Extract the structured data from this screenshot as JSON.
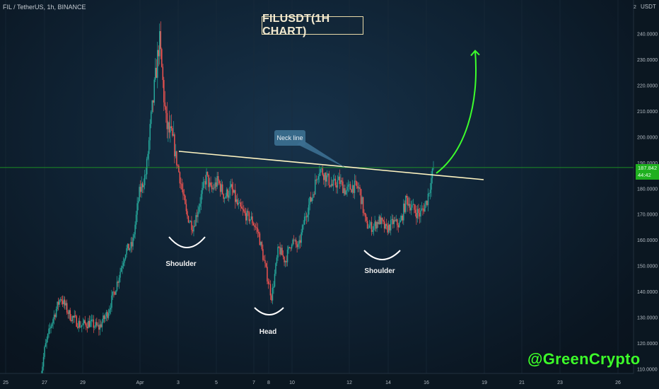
{
  "header": {
    "symbol": "FIL / TetherUS, 1h, BINANCE",
    "unit": "USDT"
  },
  "title": "FILUSDT(1H CHART)",
  "brand": "@GreenCrypto",
  "price_tag": {
    "price": "187.842",
    "countdown": "44:42"
  },
  "annotations": {
    "neck_line": "Neck line",
    "left_shoulder": "Shoulder",
    "head": "Head",
    "right_shoulder": "Shoulder"
  },
  "colors": {
    "up": "#26a69a",
    "down": "#ef5350",
    "neckline": "#fff5c2",
    "arrow": "#3dff2c",
    "price_line": "#1fb01f",
    "callout": "#3c6f90"
  },
  "chart_data": {
    "type": "candlestick",
    "symbol": "FIL / TetherUS",
    "interval": "1h",
    "exchange": "BINANCE",
    "y_unit": "USDT",
    "ylim": [
      106,
      252
    ],
    "y_ticks": [
      110,
      120,
      130,
      140,
      150,
      160,
      170,
      180,
      190,
      200,
      210,
      220,
      230,
      240
    ],
    "y_tick_labels": [
      "110.0000",
      "120.0000",
      "130.0000",
      "140.0000",
      "150.0000",
      "160.0000",
      "170.0000",
      "180.0000",
      "190.0000",
      "200.0000",
      "210.0000",
      "220.0000",
      "230.0000",
      "240.0000"
    ],
    "y_top_label": "2",
    "x_tick_labels": [
      "25",
      "27",
      "29",
      "Apr",
      "3",
      "5",
      "7",
      "8",
      "10",
      "12",
      "14",
      "16",
      "19",
      "21",
      "23",
      "26"
    ],
    "last_price": 187.842,
    "price_path": [
      [
        0,
        106
      ],
      [
        0.02,
        118
      ],
      [
        0.05,
        128
      ],
      [
        0.09,
        138
      ],
      [
        0.13,
        131
      ],
      [
        0.18,
        127
      ],
      [
        0.22,
        128
      ],
      [
        0.26,
        126
      ],
      [
        0.3,
        132
      ],
      [
        0.34,
        143
      ],
      [
        0.38,
        156
      ],
      [
        0.41,
        158
      ],
      [
        0.44,
        178
      ],
      [
        0.47,
        186
      ],
      [
        0.5,
        212
      ],
      [
        0.53,
        238
      ],
      [
        0.56,
        205
      ],
      [
        0.59,
        198
      ],
      [
        0.62,
        185
      ],
      [
        0.65,
        170
      ],
      [
        0.68,
        165
      ],
      [
        0.71,
        175
      ],
      [
        0.74,
        185
      ],
      [
        0.76,
        179
      ],
      [
        0.79,
        183
      ],
      [
        0.82,
        177
      ],
      [
        0.85,
        180
      ],
      [
        0.88,
        173
      ],
      [
        0.91,
        170
      ],
      [
        0.94,
        168
      ],
      [
        0.97,
        163
      ],
      [
        1.0,
        150
      ],
      [
        1.03,
        138
      ],
      [
        1.06,
        157
      ],
      [
        1.09,
        152
      ],
      [
        1.12,
        160
      ],
      [
        1.15,
        157
      ],
      [
        1.18,
        170
      ],
      [
        1.21,
        177
      ],
      [
        1.24,
        188
      ],
      [
        1.27,
        185
      ],
      [
        1.3,
        181
      ],
      [
        1.33,
        183
      ],
      [
        1.36,
        179
      ],
      [
        1.39,
        181
      ],
      [
        1.42,
        180
      ],
      [
        1.45,
        166
      ],
      [
        1.48,
        165
      ],
      [
        1.51,
        168
      ],
      [
        1.54,
        164
      ],
      [
        1.57,
        167
      ],
      [
        1.6,
        166
      ],
      [
        1.63,
        176
      ],
      [
        1.66,
        172
      ],
      [
        1.69,
        170
      ],
      [
        1.72,
        175
      ],
      [
        1.75,
        188
      ]
    ],
    "neckline": {
      "start": 194.5,
      "end": 183.5
    },
    "horizontal_line": 188.2,
    "target_arrow_end": 233.5
  }
}
